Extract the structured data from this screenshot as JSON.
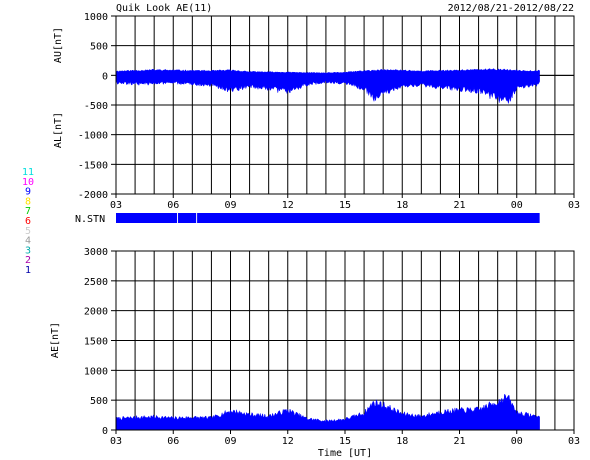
{
  "header": {
    "title": "Quik Look AE(11)",
    "date_range": "2012/08/21-2012/08/22"
  },
  "stations": {
    "label": "N.STN",
    "counts": [
      {
        "value": "11",
        "color": "#00dddd"
      },
      {
        "value": "10",
        "color": "#ff00ff"
      },
      {
        "value": "9",
        "color": "#0000ff"
      },
      {
        "value": "8",
        "color": "#ffe000"
      },
      {
        "value": "7",
        "color": "#00cc00"
      },
      {
        "value": "6",
        "color": "#ff0000"
      },
      {
        "value": "5",
        "color": "#cccccc"
      },
      {
        "value": "4",
        "color": "#999999"
      },
      {
        "value": "3",
        "color": "#00aaaa"
      },
      {
        "value": "2",
        "color": "#aa00aa"
      },
      {
        "value": "1",
        "color": "#0000aa"
      }
    ],
    "coverage": [
      [
        3.0,
        6.2
      ],
      [
        6.25,
        7.2
      ],
      [
        7.25,
        25.2
      ]
    ]
  },
  "chart_data": [
    {
      "type": "area",
      "panel": "AU/AL",
      "ylabels": [
        "AU[nT]",
        "AL[nT]"
      ],
      "ylim": [
        -2000,
        1000
      ],
      "yticks": [
        "-2000",
        "-1500",
        "-1000",
        "-500",
        "0",
        "500",
        "1000"
      ],
      "xlim": [
        3,
        27
      ],
      "xtick_labels": [
        "03",
        "06",
        "09",
        "12",
        "15",
        "18",
        "21",
        "00",
        "03"
      ],
      "grid": true,
      "color": "#0000ff",
      "series": [
        {
          "values_x": [
            3.0,
            4.0,
            5.0,
            6.0,
            7.0,
            8.0,
            9.0,
            10.0,
            11.0,
            12.0,
            13.0,
            14.0,
            15.0,
            16.0,
            16.5,
            17.0,
            18.0,
            19.0,
            20.0,
            21.0,
            22.0,
            23.0,
            23.5,
            24.0,
            25.0,
            25.2
          ],
          "au": [
            70,
            80,
            90,
            85,
            80,
            75,
            85,
            60,
            55,
            50,
            45,
            40,
            50,
            75,
            80,
            90,
            85,
            70,
            80,
            85,
            95,
            100,
            90,
            80,
            75,
            90
          ],
          "al": [
            -130,
            -140,
            -140,
            -120,
            -150,
            -160,
            -250,
            -180,
            -220,
            -270,
            -150,
            -110,
            -130,
            -220,
            -380,
            -300,
            -180,
            -160,
            -200,
            -230,
            -260,
            -380,
            -470,
            -200,
            -160,
            -130
          ]
        }
      ]
    },
    {
      "type": "area",
      "panel": "AE",
      "ylabel": "AE[nT]",
      "xlabel": "Time [UT]",
      "ylim": [
        0,
        3000
      ],
      "yticks": [
        "0",
        "500",
        "1000",
        "1500",
        "2000",
        "2500",
        "3000"
      ],
      "xlim": [
        3,
        27
      ],
      "xtick_labels": [
        "03",
        "06",
        "09",
        "12",
        "15",
        "18",
        "21",
        "00",
        "03"
      ],
      "grid": true,
      "color": "#0000ff",
      "x": [
        3.0,
        4.0,
        5.0,
        6.0,
        7.0,
        8.0,
        9.0,
        10.0,
        11.0,
        12.0,
        13.0,
        14.0,
        15.0,
        16.0,
        16.5,
        17.0,
        18.0,
        19.0,
        20.0,
        21.0,
        22.0,
        23.0,
        23.5,
        24.0,
        25.0,
        25.2
      ],
      "values": [
        190,
        210,
        220,
        200,
        210,
        200,
        320,
        260,
        230,
        330,
        190,
        150,
        180,
        280,
        460,
        420,
        270,
        230,
        300,
        330,
        340,
        470,
        560,
        290,
        230,
        220
      ]
    }
  ]
}
